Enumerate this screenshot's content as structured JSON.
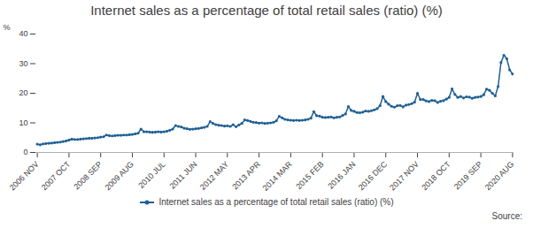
{
  "chart_data": {
    "type": "line",
    "title": "Internet sales as a percentage of total retail sales (ratio) (%)",
    "y_label": "%",
    "source": "Source:",
    "categories": [
      "2006 NOV",
      null,
      null,
      null,
      null,
      null,
      null,
      null,
      null,
      null,
      null,
      "2007 OCT",
      null,
      null,
      null,
      null,
      null,
      null,
      null,
      null,
      null,
      null,
      "2008 SEP",
      null,
      null,
      null,
      null,
      null,
      null,
      null,
      null,
      null,
      null,
      "2009 AUG",
      null,
      null,
      null,
      null,
      null,
      null,
      null,
      null,
      null,
      null,
      "2010 JUL",
      null,
      null,
      null,
      null,
      null,
      null,
      null,
      null,
      null,
      null,
      "2011 JUN",
      null,
      null,
      null,
      null,
      null,
      null,
      null,
      null,
      null,
      null,
      "2012 MAY",
      null,
      null,
      null,
      null,
      null,
      null,
      null,
      null,
      null,
      null,
      "2013 APR",
      null,
      null,
      null,
      null,
      null,
      null,
      null,
      null,
      null,
      null,
      "2014 MAR",
      null,
      null,
      null,
      null,
      null,
      null,
      null,
      null,
      null,
      null,
      "2015 FEB",
      null,
      null,
      null,
      null,
      null,
      null,
      null,
      null,
      null,
      null,
      "2016 JAN",
      null,
      null,
      null,
      null,
      null,
      null,
      null,
      null,
      null,
      null,
      "2016 DEC",
      null,
      null,
      null,
      null,
      null,
      null,
      null,
      null,
      null,
      null,
      "2017 NOV",
      null,
      null,
      null,
      null,
      null,
      null,
      null,
      null,
      null,
      null,
      "2018 OCT",
      null,
      null,
      null,
      null,
      null,
      null,
      null,
      null,
      null,
      null,
      "2019 SEP",
      null,
      null,
      null,
      null,
      null,
      null,
      null,
      null,
      null,
      null,
      "2020 AUG"
    ],
    "series": [
      {
        "name": "Internet sales as a percentage of total retail sales (ratio) (%)",
        "color": "#206095",
        "marker": "circle",
        "values": [
          2.8,
          2.6,
          2.9,
          3.0,
          3.1,
          3.2,
          3.3,
          3.4,
          3.5,
          3.7,
          3.9,
          4.2,
          4.5,
          4.4,
          4.4,
          4.5,
          4.6,
          4.7,
          4.8,
          4.8,
          4.9,
          5.0,
          5.2,
          5.3,
          5.9,
          5.7,
          5.6,
          5.7,
          5.8,
          5.8,
          5.9,
          5.9,
          6.0,
          6.1,
          6.3,
          6.5,
          7.9,
          7.0,
          7.0,
          6.9,
          6.8,
          6.9,
          7.0,
          6.9,
          7.0,
          7.2,
          7.5,
          7.9,
          9.1,
          8.8,
          8.6,
          8.2,
          8.0,
          7.8,
          7.9,
          8.0,
          8.1,
          8.3,
          8.5,
          8.8,
          10.4,
          9.8,
          9.4,
          9.2,
          9.1,
          8.9,
          9.0,
          8.8,
          9.4,
          8.7,
          9.3,
          9.8,
          11.0,
          10.8,
          10.5,
          10.2,
          10.1,
          9.9,
          10.0,
          9.8,
          9.9,
          10.0,
          10.2,
          10.7,
          12.2,
          11.7,
          11.2,
          11.0,
          10.9,
          10.8,
          10.9,
          10.8,
          10.9,
          11.0,
          11.2,
          11.6,
          13.8,
          12.4,
          12.3,
          11.9,
          11.8,
          11.9,
          12.0,
          11.7,
          11.9,
          12.0,
          12.5,
          13.0,
          15.5,
          14.2,
          13.9,
          13.5,
          13.4,
          13.6,
          14.0,
          13.9,
          14.1,
          14.4,
          14.8,
          15.8,
          18.9,
          17.2,
          16.3,
          15.6,
          15.3,
          15.8,
          15.9,
          15.4,
          16.0,
          16.2,
          16.5,
          17.0,
          20.0,
          17.9,
          17.9,
          17.4,
          17.2,
          17.6,
          17.5,
          16.9,
          17.3,
          17.5,
          18.0,
          18.6,
          21.5,
          19.6,
          18.6,
          18.9,
          18.4,
          18.8,
          18.7,
          18.3,
          18.6,
          18.7,
          18.9,
          19.5,
          21.4,
          21.0,
          20.0,
          19.1,
          22.3,
          30.4,
          32.8,
          31.7,
          27.9,
          26.5
        ]
      }
    ],
    "ylim": [
      0,
      40
    ],
    "yticks": [
      0,
      10,
      20,
      30,
      40
    ],
    "grid": false,
    "legend": "bottom"
  }
}
